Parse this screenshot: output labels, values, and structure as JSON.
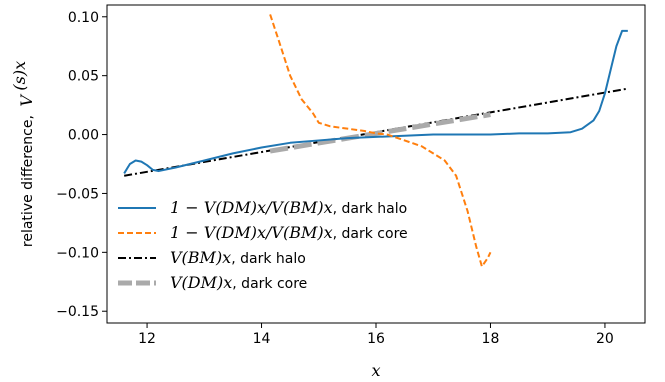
{
  "chart_data": {
    "type": "line",
    "xlabel": "x",
    "ylabel": "relative difference, V^(s)x",
    "ylabel_text": "relative difference,",
    "ylabel_math": {
      "base": "V",
      "sup": "(s)x"
    },
    "xlim": [
      11.3,
      20.7
    ],
    "ylim": [
      -0.16,
      0.11
    ],
    "xticks": [
      12,
      14,
      16,
      18,
      20
    ],
    "yticks": [
      0.1,
      0.05,
      0.0,
      -0.05,
      -0.1,
      -0.15
    ],
    "ytick_labels": [
      "0.10",
      "0.05",
      "0.00",
      "−0.05",
      "−0.10",
      "−0.15"
    ],
    "grid": false,
    "legend_position": "lower-left",
    "series": [
      {
        "name": "1 − V^(DM)x/V^(BM)x, dark halo",
        "legend_math": "1 − V(DM)x/V(BM)x",
        "legend_suffix": ", dark halo",
        "color": "#1f77b4",
        "style": "solid",
        "x": [
          11.6,
          11.7,
          11.8,
          11.9,
          12.0,
          12.1,
          12.2,
          12.5,
          13.0,
          13.5,
          14.0,
          14.5,
          15.0,
          15.5,
          16.0,
          16.5,
          17.0,
          17.5,
          18.0,
          18.5,
          19.0,
          19.4,
          19.6,
          19.8,
          19.9,
          20.0,
          20.1,
          20.2,
          20.3,
          20.4
        ],
        "y": [
          -0.033,
          -0.025,
          -0.022,
          -0.023,
          -0.026,
          -0.03,
          -0.031,
          -0.028,
          -0.022,
          -0.016,
          -0.011,
          -0.007,
          -0.005,
          -0.003,
          -0.002,
          -0.001,
          0.0,
          0.0,
          0.0,
          0.001,
          0.001,
          0.002,
          0.005,
          0.012,
          0.02,
          0.035,
          0.055,
          0.075,
          0.088,
          0.088
        ]
      },
      {
        "name": "1 − V^(DM)x/V^(BM)x, dark core",
        "legend_math": "1 − V(DM)x/V(BM)x",
        "legend_suffix": ", dark core",
        "color": "#ff7f0e",
        "style": "dashed",
        "x": [
          14.15,
          14.3,
          14.5,
          14.7,
          14.9,
          15.0,
          15.2,
          15.5,
          15.8,
          16.0,
          16.2,
          16.5,
          16.8,
          17.0,
          17.2,
          17.4,
          17.6,
          17.75,
          17.85,
          17.95,
          18.0
        ],
        "y": [
          0.102,
          0.08,
          0.05,
          0.03,
          0.018,
          0.01,
          0.007,
          0.005,
          0.003,
          0.001,
          0.0,
          -0.005,
          -0.01,
          -0.016,
          -0.022,
          -0.035,
          -0.065,
          -0.095,
          -0.112,
          -0.105,
          -0.1
        ]
      },
      {
        "name": "V^(BM)x, dark halo",
        "legend_math": "V(BM)x",
        "legend_suffix": ", dark halo",
        "color": "#000000",
        "style": "dashdot",
        "x": [
          11.6,
          20.4
        ],
        "y": [
          -0.035,
          0.039
        ]
      },
      {
        "name": "V^(DM)x, dark core",
        "legend_math": "V(DM)x",
        "legend_suffix": ", dark core",
        "color": "#aaaaaa",
        "style": "thick-dashed",
        "x": [
          14.15,
          18.0
        ],
        "y": [
          -0.014,
          0.017
        ]
      }
    ]
  }
}
